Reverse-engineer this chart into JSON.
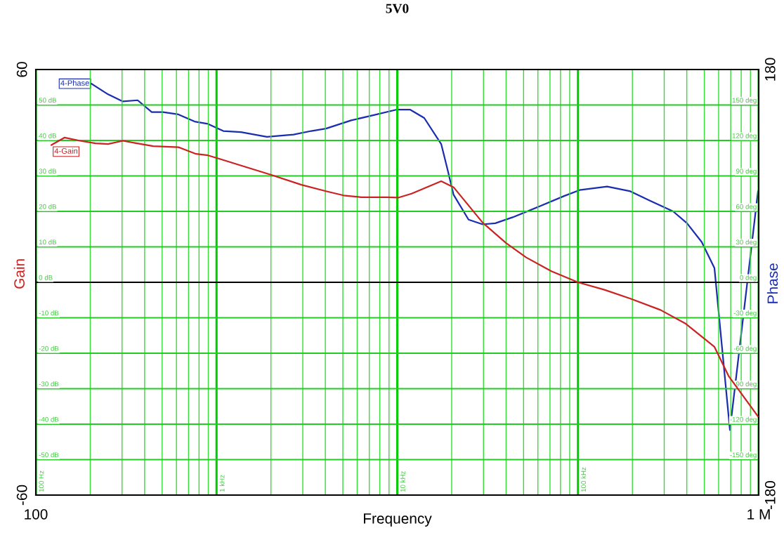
{
  "chart_data": {
    "type": "line",
    "title": "5V0",
    "xlabel": "Frequency",
    "ylabel": "Gain",
    "y2label": "Phase",
    "log": "x",
    "grid": true,
    "legend": false,
    "marker": "none",
    "line_style": "solid",
    "xlim": [
      100,
      1000000
    ],
    "xticks": [
      {
        "value": 100,
        "label": "100"
      },
      {
        "value": 200,
        "label": null
      },
      {
        "value": 300,
        "label": null
      },
      {
        "value": 400,
        "label": null
      },
      {
        "value": 500,
        "label": null
      },
      {
        "value": 600,
        "label": null
      },
      {
        "value": 700,
        "label": null
      },
      {
        "value": 800,
        "label": null
      },
      {
        "value": 900,
        "label": null
      },
      {
        "value": 1000,
        "label": null
      },
      {
        "value": 2000,
        "label": null
      },
      {
        "value": 3000,
        "label": null
      },
      {
        "value": 4000,
        "label": null
      },
      {
        "value": 5000,
        "label": null
      },
      {
        "value": 6000,
        "label": null
      },
      {
        "value": 7000,
        "label": null
      },
      {
        "value": 8000,
        "label": null
      },
      {
        "value": 9000,
        "label": null
      },
      {
        "value": 10000,
        "label": null
      },
      {
        "value": 20000,
        "label": null
      },
      {
        "value": 30000,
        "label": null
      },
      {
        "value": 40000,
        "label": null
      },
      {
        "value": 50000,
        "label": null
      },
      {
        "value": 60000,
        "label": null
      },
      {
        "value": 70000,
        "label": null
      },
      {
        "value": 80000,
        "label": null
      },
      {
        "value": 90000,
        "label": null
      },
      {
        "value": 100000,
        "label": null
      },
      {
        "value": 200000,
        "label": null
      },
      {
        "value": 300000,
        "label": null
      },
      {
        "value": 400000,
        "label": null
      },
      {
        "value": 500000,
        "label": null
      },
      {
        "value": 600000,
        "label": null
      },
      {
        "value": 700000,
        "label": null
      },
      {
        "value": 800000,
        "label": null
      },
      {
        "value": 900000,
        "label": null
      },
      {
        "value": 1000000,
        "label": "1 M"
      }
    ],
    "ylim": [
      -60,
      60
    ],
    "yticks": [
      -60,
      {
        "value": -50,
        "label": null
      },
      {
        "value": -40,
        "label": null
      },
      {
        "value": -30,
        "label": null
      },
      {
        "value": -20,
        "label": null
      },
      {
        "value": -10,
        "label": null
      },
      {
        "value": 0,
        "label": null
      },
      {
        "value": 10,
        "label": null
      },
      {
        "value": 20,
        "label": null
      },
      {
        "value": 30,
        "label": null
      },
      {
        "value": 40,
        "label": null
      },
      {
        "value": 50,
        "label": null
      },
      60
    ],
    "y2lim": [
      -180,
      180
    ],
    "y2ticks": [
      -180,
      {
        "value": -150,
        "label": null
      },
      {
        "value": -120,
        "label": null
      },
      {
        "value": -90,
        "label": null
      },
      {
        "value": -60,
        "label": null
      },
      {
        "value": -30,
        "label": null
      },
      {
        "value": 0,
        "label": null
      },
      {
        "value": 30,
        "label": null
      },
      {
        "value": 60,
        "label": null
      },
      {
        "value": 90,
        "label": null
      },
      {
        "value": 120,
        "label": null
      },
      {
        "value": 150,
        "label": null
      },
      180
    ],
    "annotations": [
      "-50 dB",
      "-40 dB",
      "-30 dB",
      "-20 dB",
      "-10 dB",
      "0 dB",
      "10 dB",
      "20 dB",
      "30 dB",
      "40 dB",
      "50 dB",
      "-150 deg",
      "-120 deg",
      "-90 deg",
      "-60 deg",
      "-30 deg",
      "0 deg",
      "30 deg",
      "60 deg",
      "90 deg",
      "120 deg",
      "150 deg",
      "100 Hz",
      "1 kHz",
      "10 kHz",
      "100 kHz"
    ],
    "ref_lines": [
      {
        "axis": "y",
        "value": 0,
        "color": "#000000"
      }
    ],
    "series": [
      {
        "name": "4-Phase",
        "color": "#1a2db0",
        "axis": "y2",
        "x": [
          203,
          251,
          303,
          366,
          438,
          505,
          615,
          756,
          896,
          1090,
          1365,
          1900,
          2670,
          3340,
          4030,
          5560,
          7210,
          9870,
          11800,
          14100,
          17500,
          19000,
          20500,
          24800,
          29700,
          34900,
          43500,
          60700,
          83800,
          102000,
          145000,
          195000,
          250000,
          336000,
          401000,
          484000,
          569000,
          693000,
          991000
        ],
        "values": [
          168,
          159,
          153,
          154,
          144,
          144,
          142,
          136,
          134,
          128,
          127,
          123,
          125,
          128,
          130,
          137,
          141,
          146,
          146,
          139,
          117,
          95,
          74,
          53,
          49,
          50,
          55,
          64,
          73,
          78,
          81,
          77,
          69,
          60,
          50,
          34,
          12,
          -125,
          77
        ]
      },
      {
        "name": "4-Gain",
        "color": "#cc2222",
        "axis": "y",
        "x": [
          122,
          144,
          176,
          214,
          251,
          303,
          363,
          446,
          615,
          770,
          896,
          1025,
          2006,
          2946,
          4030,
          5044,
          6310,
          8700,
          10200,
          12000,
          17500,
          20500,
          29700,
          39900,
          51700,
          71300,
          100000,
          140000,
          195000,
          286000,
          395000,
          569000,
          681000,
          991000
        ],
        "values": [
          38.7,
          40.8,
          39.9,
          39.2,
          39.0,
          39.9,
          39.2,
          38.4,
          38.1,
          36.2,
          35.8,
          34.9,
          30.3,
          27.5,
          25.7,
          24.5,
          24.0,
          24.0,
          23.9,
          25.0,
          28.5,
          26.8,
          16.8,
          11.1,
          7.0,
          3.1,
          0,
          -2.1,
          -4.6,
          -7.8,
          -11.7,
          -18.2,
          -26.4,
          -37.8
        ]
      }
    ]
  }
}
